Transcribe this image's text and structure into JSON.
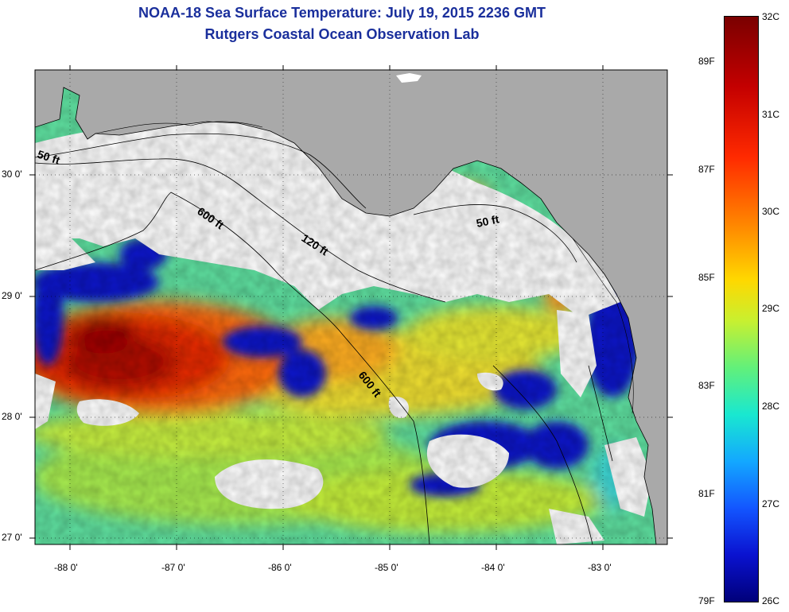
{
  "title_line1": "NOAA-18 Sea Surface Temperature:  July 19, 2015 2236 GMT",
  "title_line2": "Rutgers Coastal Ocean Observation Lab",
  "longitude_ticks": [
    "-88 0'",
    "-87 0'",
    "-86 0'",
    "-85 0'",
    "-84 0'",
    "-83 0'"
  ],
  "latitude_ticks": [
    "30 0'",
    "29 0'",
    "28 0'",
    "27 0'"
  ],
  "depth_contour_labels": [
    "50 ft",
    "600 ft",
    "120 ft",
    "50 ft",
    "600 ft"
  ],
  "colorbar": {
    "celsius": [
      "32C",
      "31C",
      "30C",
      "29C",
      "28C",
      "27C",
      "26C"
    ],
    "fahrenheit": [
      "89F",
      "87F",
      "85F",
      "83F",
      "81F",
      "79F"
    ]
  },
  "colors": {
    "title": "#1a2f9c",
    "land": "#a9a9a9",
    "cloud": "#ffffff"
  }
}
